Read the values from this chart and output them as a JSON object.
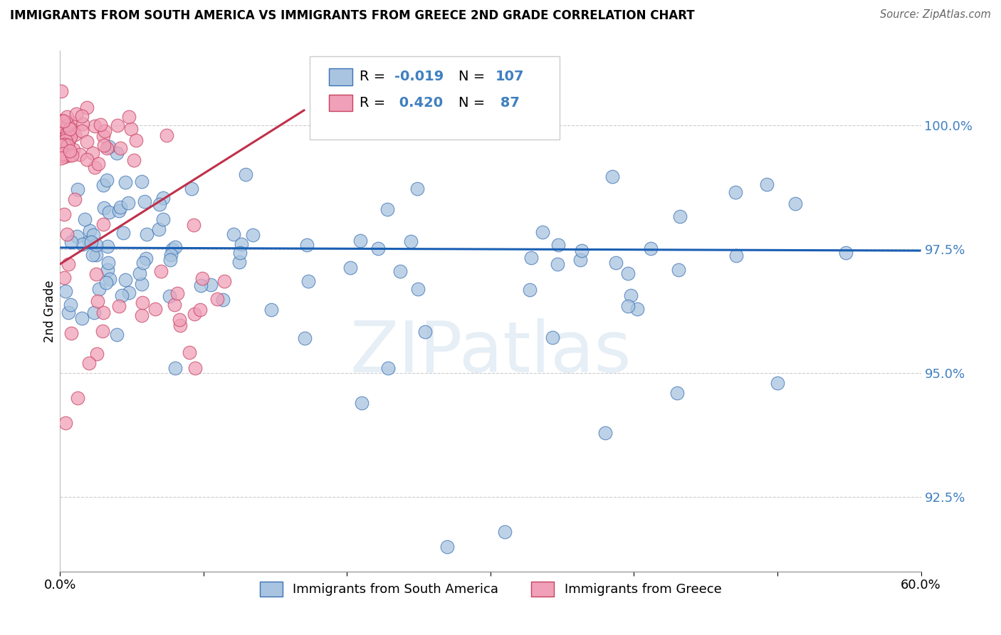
{
  "title": "IMMIGRANTS FROM SOUTH AMERICA VS IMMIGRANTS FROM GREECE 2ND GRADE CORRELATION CHART",
  "source": "Source: ZipAtlas.com",
  "ylabel": "2nd Grade",
  "xlim": [
    0.0,
    60.0
  ],
  "ylim": [
    91.0,
    101.5
  ],
  "ytick_vals": [
    92.5,
    95.0,
    97.5,
    100.0
  ],
  "ytick_labels": [
    "92.5%",
    "95.0%",
    "97.5%",
    "100.0%"
  ],
  "color_blue": "#a8c4e0",
  "color_pink": "#f0a0b8",
  "color_edge_blue": "#3d72b4",
  "color_edge_pink": "#c84060",
  "color_line_blue": "#1a5fb4",
  "color_line_pink": "#c0304a",
  "color_text_blue": "#4080c0",
  "watermark": "ZIPatlas",
  "r_blue": -0.019,
  "n_blue": 107,
  "r_pink": 0.42,
  "n_pink": 87,
  "legend_label_blue": "Immigrants from South America",
  "legend_label_pink": "Immigrants from Greece"
}
